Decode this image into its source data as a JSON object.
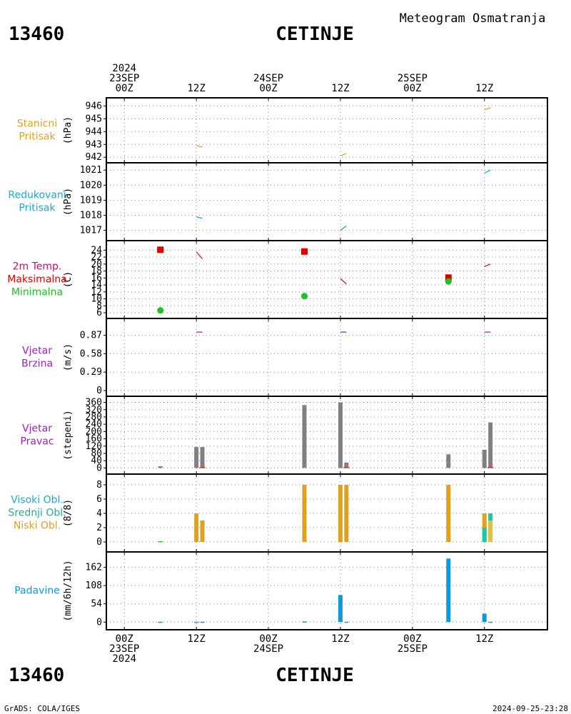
{
  "header": {
    "station_id": "13460",
    "station_name": "CETINJE",
    "subtitle": "Meteogram Osmatranja"
  },
  "footer": {
    "station_id": "13460",
    "station_name": "CETINJE",
    "credit": "GrADS: COLA/IGES",
    "timestamp": "2024-09-25-23:28"
  },
  "time_axis": {
    "top_labels": [
      {
        "lines": [
          "2024",
          "23SEP",
          "00Z"
        ],
        "t": 0
      },
      {
        "lines": [
          "12Z"
        ],
        "t": 12
      },
      {
        "lines": [
          "24SEP",
          "00Z"
        ],
        "t": 24
      },
      {
        "lines": [
          "12Z"
        ],
        "t": 36
      },
      {
        "lines": [
          "25SEP",
          "00Z"
        ],
        "t": 48
      },
      {
        "lines": [
          "12Z"
        ],
        "t": 60
      }
    ],
    "bottom_labels": [
      {
        "lines": [
          "00Z",
          "23SEP",
          "2024"
        ],
        "t": 0
      },
      {
        "lines": [
          "12Z"
        ],
        "t": 12
      },
      {
        "lines": [
          "00Z",
          "24SEP"
        ],
        "t": 24
      },
      {
        "lines": [
          "12Z"
        ],
        "t": 36
      },
      {
        "lines": [
          "00Z",
          "25SEP"
        ],
        "t": 48
      },
      {
        "lines": [
          "12Z"
        ],
        "t": 60
      }
    ],
    "range_hours": [
      -3,
      70.5
    ]
  },
  "chart_data": [
    {
      "id": "station_pressure",
      "type": "line",
      "title": [
        "Stanicni",
        "Pritisak"
      ],
      "ylabel": "(hPa)",
      "yticks": [
        942,
        943,
        944,
        945,
        946
      ],
      "ylim": [
        941.9,
        946.3
      ],
      "grid": true,
      "series": [
        {
          "color": "#e0a020",
          "segments": [
            [
              [
                12,
                942.9
              ],
              [
                13,
                942.8
              ]
            ],
            [
              [
                36,
                942.1
              ],
              [
                37,
                942.3
              ]
            ],
            [
              [
                60,
                945.7
              ],
              [
                61,
                945.85
              ]
            ]
          ]
        }
      ]
    },
    {
      "id": "reduced_pressure",
      "type": "line",
      "title": [
        "Redukovani",
        "Pritisak"
      ],
      "ylabel": "(hPa)",
      "yticks": [
        1017,
        1018,
        1019,
        1020,
        1021
      ],
      "ylim": [
        1016.6,
        1021.2
      ],
      "grid": true,
      "series": [
        {
          "color": "#20a8c8",
          "segments": [
            [
              [
                12,
                1017.9
              ],
              [
                13,
                1017.8
              ]
            ],
            [
              [
                36,
                1017.0
              ],
              [
                37,
                1017.3
              ]
            ],
            [
              [
                60,
                1020.8
              ],
              [
                61,
                1021.0
              ]
            ]
          ]
        }
      ]
    },
    {
      "id": "temperature",
      "type": "line",
      "title": [
        "2m Temp.",
        "Maksimalna",
        "Minimalna"
      ],
      "title_colors": [
        "#c0106a",
        "#e00000",
        "#20c020"
      ],
      "ylabel": "(C)",
      "yticks": [
        6,
        8,
        10,
        12,
        14,
        16,
        18,
        20,
        22,
        24
      ],
      "ylim": [
        5.6,
        25.5
      ],
      "grid": true,
      "series": [
        {
          "name": "2m Temp.",
          "color": "#c0106a",
          "segments": [
            [
              [
                12,
                23.5
              ],
              [
                13,
                21.5
              ]
            ],
            [
              [
                36,
                15.8
              ],
              [
                37,
                14.3
              ]
            ],
            [
              [
                60,
                19.3
              ],
              [
                61,
                20.0
              ]
            ]
          ]
        }
      ],
      "max_points": {
        "color": "#e00000",
        "points": [
          [
            6,
            24.1
          ],
          [
            30,
            23.6
          ],
          [
            54,
            16.1
          ]
        ]
      },
      "min_points": {
        "color": "#20c020",
        "points": [
          [
            6,
            6.7
          ],
          [
            30,
            10.8
          ],
          [
            54,
            15.0
          ]
        ]
      }
    },
    {
      "id": "wind_speed",
      "type": "line",
      "title": [
        "Vjetar",
        "Brzina"
      ],
      "ylabel": "(m/s)",
      "yticks": [
        0,
        0.29,
        0.58,
        0.87
      ],
      "ylim": [
        0,
        1.0
      ],
      "grid": true,
      "series": [
        {
          "color": "#a020c0",
          "segments": [
            [
              [
                12,
                0.92
              ],
              [
                13,
                0.92
              ]
            ],
            [
              [
                36,
                0.92
              ],
              [
                37,
                0.92
              ]
            ],
            [
              [
                60,
                0.92
              ],
              [
                61,
                0.92
              ]
            ]
          ]
        }
      ]
    },
    {
      "id": "wind_direction",
      "type": "bar",
      "title": [
        "Vjetar",
        "Pravac"
      ],
      "ylabel": "(stepeni)",
      "yticks": [
        0,
        40,
        80,
        120,
        160,
        200,
        240,
        280,
        320,
        360
      ],
      "ylim": [
        -10,
        370
      ],
      "grid": true,
      "bars": [
        {
          "t": 6,
          "value": 10,
          "color": "#808080"
        },
        {
          "t": 12,
          "value": 115,
          "color": "#808080"
        },
        {
          "t": 13,
          "value": 115,
          "color": "#808080"
        },
        {
          "t": 30,
          "value": 345,
          "color": "#808080"
        },
        {
          "t": 36,
          "value": 360,
          "color": "#808080"
        },
        {
          "t": 37,
          "value": 30,
          "color": "#808080"
        },
        {
          "t": 54,
          "value": 75,
          "color": "#808080"
        },
        {
          "t": 60,
          "value": 100,
          "color": "#808080"
        },
        {
          "t": 61,
          "value": 250,
          "color": "#808080"
        }
      ],
      "series": [
        {
          "color": "#e02020",
          "segments": [
            [
              [
                12.5,
                2
              ],
              [
                13.5,
                2
              ]
            ],
            [
              [
                36.5,
                2
              ],
              [
                37.5,
                2
              ]
            ],
            [
              [
                60.5,
                2
              ],
              [
                61.5,
                2
              ]
            ]
          ]
        }
      ]
    },
    {
      "id": "clouds",
      "type": "bar",
      "title": [
        "Visoki Obl.",
        "Srednji Obl.",
        "Niski Obl."
      ],
      "title_colors": [
        "#20a8c8",
        "#20b090",
        "#e0a020"
      ],
      "ylabel": "(8/8)",
      "yticks": [
        0,
        2,
        4,
        6,
        8
      ],
      "ylim": [
        -0.8,
        8.9
      ],
      "grid": true,
      "bars": [
        {
          "t": 6,
          "value": 0.1,
          "color": "#20c020"
        },
        {
          "t": 12,
          "value": 4,
          "color": "#e0a020"
        },
        {
          "t": 13,
          "value": 3,
          "color": "#e0a020"
        },
        {
          "t": 30,
          "value": 8,
          "color": "#e0a020"
        },
        {
          "t": 36,
          "value": 8,
          "color": "#e0a020"
        },
        {
          "t": 37,
          "value": 8,
          "color": "#e0a020"
        },
        {
          "t": 54,
          "value": 8,
          "color": "#e0a020"
        },
        {
          "t": 60,
          "value": 4,
          "color": "#e0a020"
        },
        {
          "t": 61,
          "value": 4,
          "color": "#20c8a0"
        }
      ],
      "overlay_bars": [
        {
          "t": 60,
          "value": 2,
          "color": "#20c8a0"
        },
        {
          "t": 61,
          "value": 3,
          "color": "#e0c040"
        }
      ]
    },
    {
      "id": "precipitation",
      "type": "bar",
      "title": [
        "Padavine"
      ],
      "title_colors": [
        "#1098d8"
      ],
      "ylabel": "(mm/6h/12h)",
      "yticks": [
        0,
        54,
        108,
        162
      ],
      "ylim": [
        -10,
        195
      ],
      "grid": true,
      "bars": [
        {
          "t": 6,
          "value": 1,
          "color": "#1098d8"
        },
        {
          "t": 12,
          "value": 1,
          "color": "#1098d8"
        },
        {
          "t": 13,
          "value": 1,
          "color": "#1098d8"
        },
        {
          "t": 30,
          "value": 2,
          "color": "#1098d8"
        },
        {
          "t": 36,
          "value": 80,
          "color": "#1098d8"
        },
        {
          "t": 37,
          "value": 1,
          "color": "#1098d8"
        },
        {
          "t": 54,
          "value": 188,
          "color": "#1098d8"
        },
        {
          "t": 60,
          "value": 25,
          "color": "#1098d8"
        },
        {
          "t": 61,
          "value": 1,
          "color": "#1098d8"
        }
      ]
    }
  ]
}
